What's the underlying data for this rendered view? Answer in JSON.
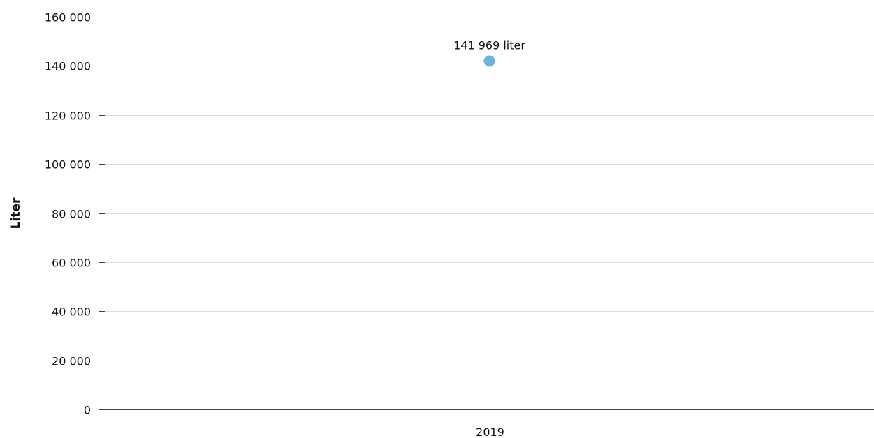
{
  "chart_data": {
    "type": "scatter",
    "title": "",
    "xlabel": "",
    "ylabel": "Liter",
    "categories": [
      "2019"
    ],
    "series": [
      {
        "values": [
          141969
        ],
        "color": "#6bb4dd"
      }
    ],
    "data_labels": [
      "141 969 liter"
    ],
    "ylim": [
      0,
      160000
    ],
    "yticks": [
      0,
      20000,
      40000,
      60000,
      80000,
      100000,
      120000,
      140000,
      160000
    ],
    "ytick_labels": [
      "0",
      "20 000",
      "40 000",
      "60 000",
      "80 000",
      "100 000",
      "120 000",
      "140 000",
      "160 000"
    ],
    "grid": true,
    "legend": "none"
  }
}
